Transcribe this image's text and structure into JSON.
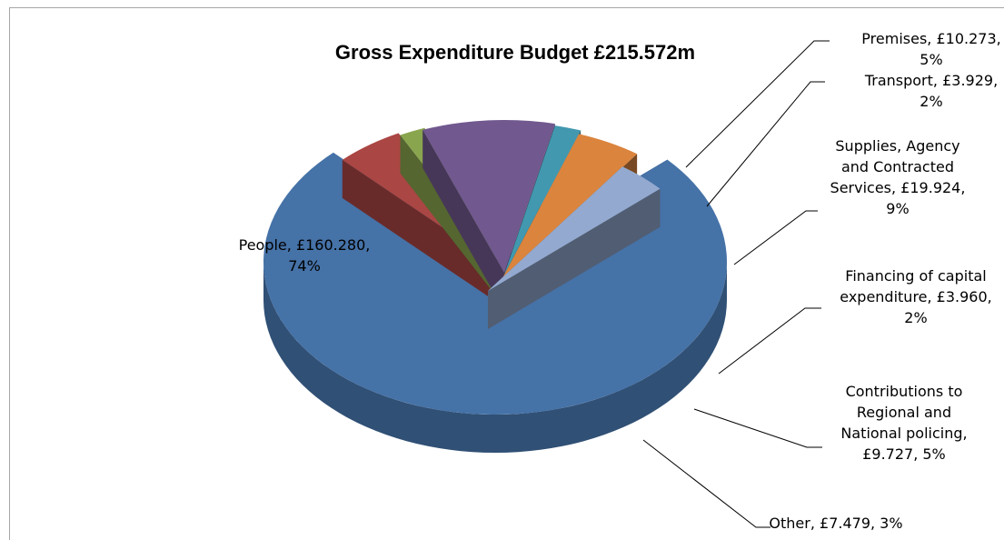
{
  "chart_data": {
    "type": "pie",
    "variant": "3d-exploded",
    "title": "Gross Expenditure Budget £215.572m",
    "unit": "£m",
    "total": 215.572,
    "legend": "none",
    "slices": [
      {
        "key": "people",
        "name": "People",
        "value": 160.28,
        "percent": 74,
        "color": "#4572A7",
        "label_lines": [
          "People, £160.280,",
          "74%"
        ]
      },
      {
        "key": "premises",
        "name": "Premises",
        "value": 10.273,
        "percent": 5,
        "color": "#AA4643",
        "label_lines": [
          "Premises, £10.273,",
          "5%"
        ]
      },
      {
        "key": "transport",
        "name": "Transport",
        "value": 3.929,
        "percent": 2,
        "color": "#89A54E",
        "label_lines": [
          "Transport, £3.929,",
          "2%"
        ]
      },
      {
        "key": "supplies",
        "name": "Supplies, Agency and Contracted Services",
        "value": 19.924,
        "percent": 9,
        "color": "#71588F",
        "label_lines": [
          "Supplies, Agency",
          "and Contracted",
          "Services, £19.924,",
          "9%"
        ]
      },
      {
        "key": "financing",
        "name": "Financing of capital expenditure",
        "value": 3.96,
        "percent": 2,
        "color": "#4198AF",
        "label_lines": [
          "Financing of capital",
          "expenditure, £3.960,",
          "2%"
        ]
      },
      {
        "key": "contributions",
        "name": "Contributions to Regional and National policing",
        "value": 9.727,
        "percent": 5,
        "color": "#DB843D",
        "label_lines": [
          "Contributions to",
          "Regional and",
          "National policing,",
          "£9.727, 5%"
        ]
      },
      {
        "key": "other",
        "name": "Other",
        "value": 7.479,
        "percent": 3,
        "color": "#93A9CF",
        "label_lines": [
          "Other, £7.479, 3%"
        ]
      }
    ]
  }
}
